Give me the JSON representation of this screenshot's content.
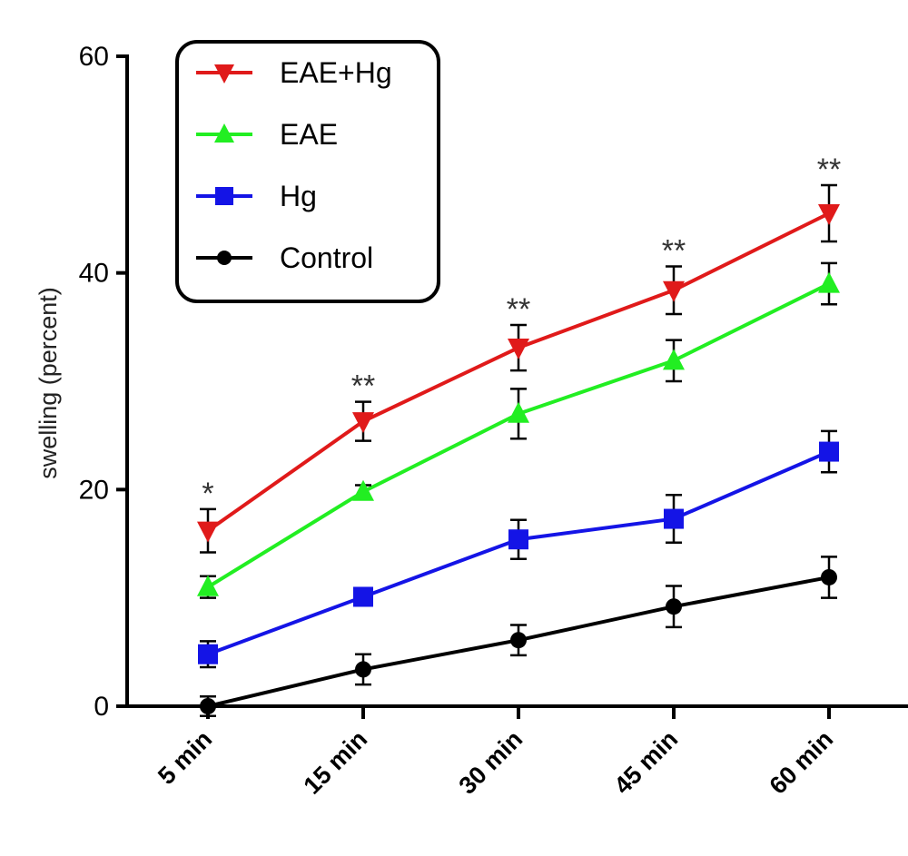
{
  "chart_data": {
    "type": "line",
    "categories": [
      "5 min",
      "15 min",
      "30 min",
      "45 min",
      "60 min"
    ],
    "ylabel": "swelling (percent)",
    "xlabel": "",
    "ylim": [
      0,
      60
    ],
    "yticks": [
      0,
      20,
      40,
      60
    ],
    "grid": false,
    "legend_position": "top-left",
    "series": [
      {
        "name": "EAE+Hg",
        "color": "#e01a1a",
        "marker": "triangle-down",
        "values": [
          16.2,
          26.3,
          33.1,
          38.4,
          45.5
        ],
        "errors": [
          2.0,
          1.8,
          2.1,
          2.2,
          2.6
        ],
        "annotations": [
          "*",
          "**",
          "**",
          "**",
          "**"
        ]
      },
      {
        "name": "EAE",
        "color": "#22ee22",
        "marker": "triangle-up",
        "values": [
          11.0,
          19.8,
          27.0,
          31.9,
          39.0
        ],
        "errors": [
          1.0,
          0.6,
          2.3,
          1.9,
          1.9
        ]
      },
      {
        "name": "Hg",
        "color": "#1414e6",
        "marker": "square",
        "values": [
          4.8,
          10.1,
          15.4,
          17.3,
          23.5
        ],
        "errors": [
          1.2,
          0.8,
          1.8,
          2.2,
          1.9
        ]
      },
      {
        "name": "Control",
        "color": "#000000",
        "marker": "circle",
        "values": [
          0.0,
          3.4,
          6.1,
          9.2,
          11.9
        ],
        "errors": [
          0.9,
          1.4,
          1.4,
          1.9,
          1.9
        ]
      }
    ]
  }
}
